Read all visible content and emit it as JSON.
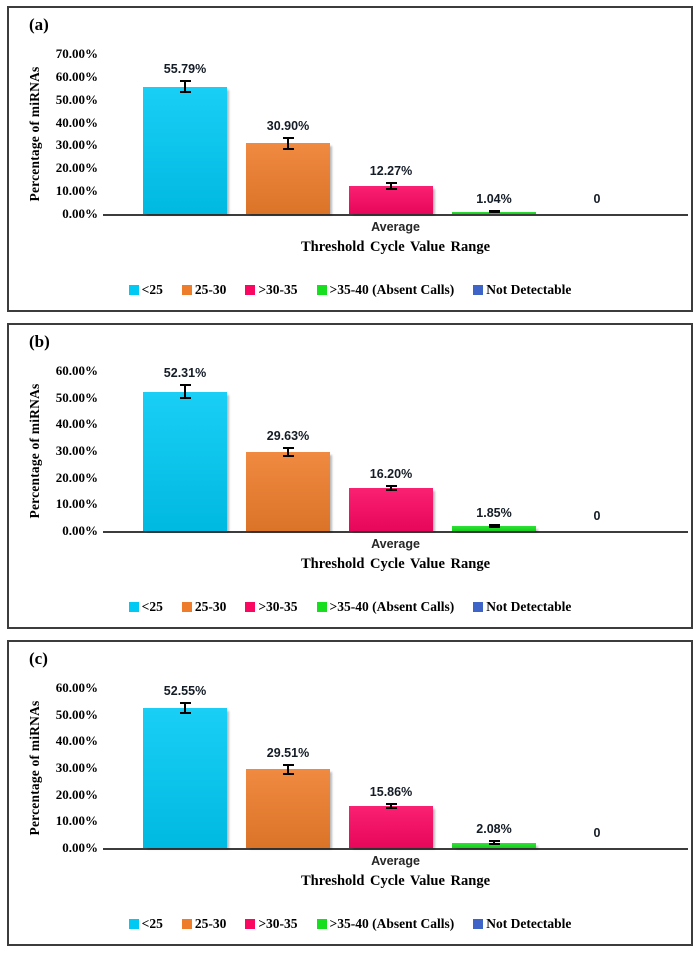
{
  "chart_data": [
    {
      "type": "bar",
      "panel_label": "(a)",
      "categories": [
        "<25",
        "25-30",
        ">30-35",
        ">35-40 (Absent Calls)",
        "Not Detectable"
      ],
      "values": [
        55.79,
        30.9,
        12.27,
        1.04,
        0
      ],
      "data_labels": [
        "55.79%",
        "30.90%",
        "12.27%",
        "1.04%",
        "0"
      ],
      "error_bars_pct": [
        2.6,
        2.5,
        1.5,
        0.3,
        0
      ],
      "colors": [
        "#00C9F4",
        "#EE7D2B",
        "#FA0762",
        "#17DF1F",
        "#3E64C8"
      ],
      "x_tick_label": "Average",
      "xlabel": "Threshold Cycle Value Range",
      "ylabel": "Percentage of miRNAs",
      "ylim": [
        0,
        70
      ],
      "ytick_step": 10,
      "ytick_suffix": "%",
      "grid": false,
      "legend_position": "bottom"
    },
    {
      "type": "bar",
      "panel_label": "(b)",
      "categories": [
        "<25",
        "25-30",
        ">30-35",
        ">35-40 (Absent Calls)",
        "Not Detectable"
      ],
      "values": [
        52.31,
        29.63,
        16.2,
        1.85,
        0
      ],
      "data_labels": [
        "52.31%",
        "29.63%",
        "16.20%",
        "1.85%",
        "0"
      ],
      "error_bars_pct": [
        2.5,
        1.5,
        0.8,
        0.25,
        0
      ],
      "colors": [
        "#00C9F4",
        "#EE7D2B",
        "#FA0762",
        "#17DF1F",
        "#3E64C8"
      ],
      "x_tick_label": "Average",
      "xlabel": "Threshold Cycle Value Range",
      "ylabel": "Percentage of miRNAs",
      "ylim": [
        0,
        60
      ],
      "ytick_step": 10,
      "ytick_suffix": "%",
      "grid": false,
      "legend_position": "bottom"
    },
    {
      "type": "bar",
      "panel_label": "(c)",
      "categories": [
        "<25",
        "25-30",
        ">30-35",
        ">35-40 (Absent Calls)",
        "Not Detectable"
      ],
      "values": [
        52.55,
        29.51,
        15.86,
        2.08,
        0
      ],
      "data_labels": [
        "52.55%",
        "29.51%",
        "15.86%",
        "2.08%",
        "0"
      ],
      "error_bars_pct": [
        1.8,
        1.6,
        0.8,
        0.4,
        0
      ],
      "colors": [
        "#00C9F4",
        "#EE7D2B",
        "#FA0762",
        "#17DF1F",
        "#3E64C8"
      ],
      "x_tick_label": "Average",
      "xlabel": "Threshold Cycle Value Range",
      "ylabel": "Percentage of miRNAs",
      "ylim": [
        0,
        60
      ],
      "ytick_step": 10,
      "ytick_suffix": "%",
      "grid": false,
      "legend_position": "bottom"
    }
  ]
}
